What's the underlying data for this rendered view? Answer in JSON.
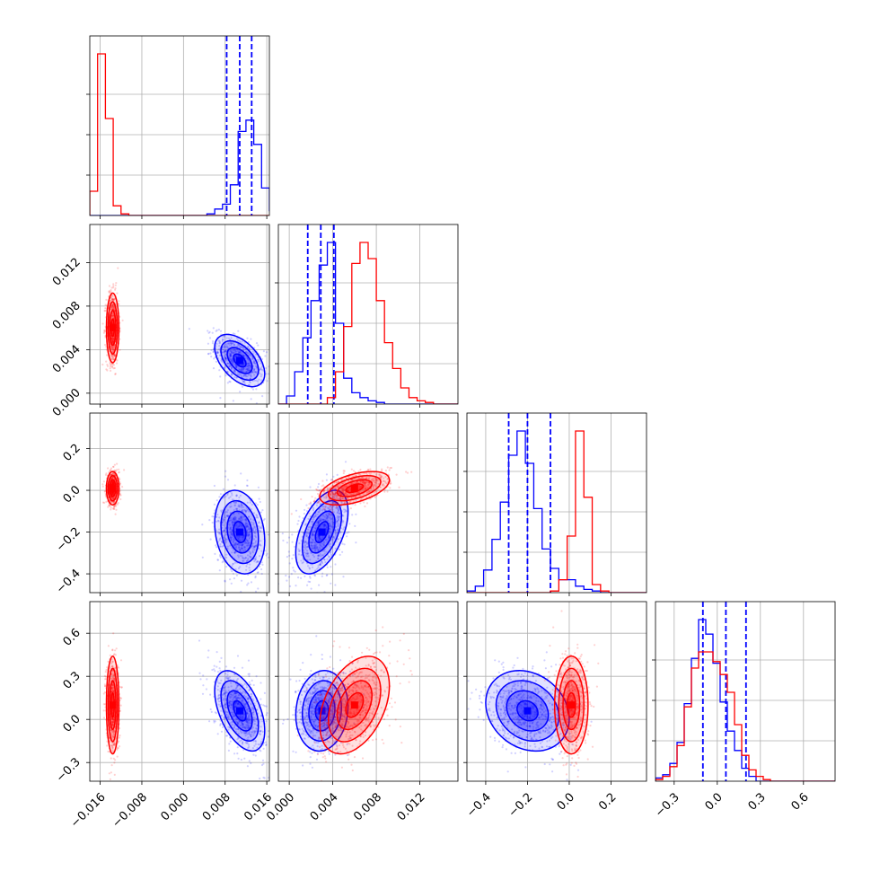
{
  "chart_data": {
    "type": "corner",
    "grid": true,
    "colors": {
      "blue": "#0000ff",
      "red": "#ff0000"
    },
    "params": [
      {
        "range": [
          -0.018,
          0.0165
        ],
        "ticks": [
          -0.016,
          -0.008,
          0.0,
          0.008,
          0.016
        ],
        "tick_labels": [
          "−0.016",
          "−0.008",
          "0.000",
          "0.008",
          "0.016"
        ]
      },
      {
        "range": [
          -0.001,
          0.0155
        ],
        "ticks": [
          0.0,
          0.004,
          0.008,
          0.012
        ],
        "tick_labels": [
          "0.000",
          "0.004",
          "0.008",
          "0.012"
        ]
      },
      {
        "range": [
          -0.49,
          0.37
        ],
        "ticks": [
          -0.4,
          -0.2,
          0.0,
          0.2
        ],
        "tick_labels": [
          "−0.4",
          "−0.2",
          "0.0",
          "0.2"
        ]
      },
      {
        "range": [
          -0.43,
          0.82
        ],
        "ticks": [
          -0.3,
          0.0,
          0.3,
          0.6
        ],
        "tick_labels": [
          "−0.3",
          "0.0",
          "0.3",
          "0.6"
        ]
      }
    ],
    "series": [
      {
        "color": "blue",
        "quantiles": [
          [
            0.0083,
            0.0108,
            0.0131
          ],
          [
            0.0017,
            0.0029,
            0.0041
          ],
          [
            -0.29,
            -0.2,
            -0.09
          ],
          [
            -0.1,
            0.06,
            0.2
          ]
        ],
        "hist": [
          {
            "x0": -0.018,
            "dx": 0.0015,
            "counts": [
              0,
              0,
              0,
              0,
              0,
              0,
              0,
              0,
              0,
              0,
              0,
              0,
              0,
              0,
              0,
              1,
              4,
              7,
              19,
              52,
              59,
              44,
              17,
              3
            ]
          },
          {
            "x0": -0.001,
            "dx": 0.00075,
            "counts": [
              0,
              5,
              20,
              41,
              64,
              86,
              100,
              50,
              16,
              7,
              4,
              2,
              1,
              0,
              0,
              0,
              0,
              0,
              0,
              0,
              0,
              0,
              0,
              0
            ]
          },
          {
            "x0": -0.49,
            "dx": 0.04,
            "counts": [
              1,
              4,
              14,
              33,
              56,
              85,
              100,
              80,
              52,
              27,
              15,
              8,
              8,
              4,
              2,
              1,
              0,
              0,
              0,
              0,
              0,
              0,
              0
            ]
          },
          {
            "x0": -0.43,
            "dx": 0.05,
            "counts": [
              2,
              4,
              11,
              24,
              48,
              76,
              100,
              91,
              73,
              49,
              31,
              19,
              8,
              3,
              0,
              0,
              0,
              0,
              0,
              0,
              0,
              0,
              0,
              0,
              0
            ]
          }
        ],
        "centers": [
          [
            0.0108,
            0.003,
            -0.2,
            0.06
          ]
        ],
        "sigmas": [
          0.0024,
          0.0012,
          0.1,
          0.14
        ],
        "corr": [
          [
            1,
            -0.5,
            -0.2,
            -0.5
          ],
          [
            -0.5,
            1,
            0.5,
            0.1
          ],
          [
            -0.2,
            0.5,
            1,
            -0.2
          ],
          [
            -0.5,
            0.1,
            -0.2,
            1
          ]
        ]
      },
      {
        "color": "red",
        "quantiles": [],
        "hist": [
          {
            "x0": -0.018,
            "dx": 0.0015,
            "counts": [
              15,
              100,
              60,
              6,
              1,
              0,
              0,
              0,
              0,
              0,
              0,
              0,
              0,
              0,
              0,
              0,
              0,
              0,
              0,
              0,
              0,
              0,
              0,
              0
            ]
          },
          {
            "x0": -0.001,
            "dx": 0.00075,
            "counts": [
              0,
              0,
              0,
              0,
              0,
              0,
              4,
              20,
              48,
              87,
              100,
              90,
              64,
              38,
              22,
              10,
              4,
              2,
              1,
              0,
              0,
              0,
              0,
              0
            ]
          },
          {
            "x0": -0.49,
            "dx": 0.04,
            "counts": [
              0,
              0,
              0,
              0,
              0,
              0,
              0,
              0,
              0,
              0,
              1,
              8,
              35,
              100,
              59,
              5,
              1,
              0,
              0,
              0,
              0,
              0,
              0
            ]
          },
          {
            "x0": -0.43,
            "dx": 0.05,
            "counts": [
              1,
              3,
              9,
              22,
              46,
              70,
              80,
              80,
              74,
              66,
              55,
              35,
              16,
              7,
              3,
              1,
              0,
              0,
              0,
              0,
              0,
              0,
              0,
              0,
              0
            ]
          }
        ],
        "centers": [
          [
            -0.0136,
            0.006,
            0.01,
            0.1
          ]
        ],
        "sigmas": [
          0.0006,
          0.0016,
          0.04,
          0.17
        ],
        "corr": [
          [
            1,
            0,
            0,
            0
          ],
          [
            0,
            1,
            0.5,
            0.4
          ],
          [
            0,
            0.5,
            1,
            0
          ],
          [
            0,
            0.4,
            0,
            1
          ]
        ]
      }
    ]
  }
}
